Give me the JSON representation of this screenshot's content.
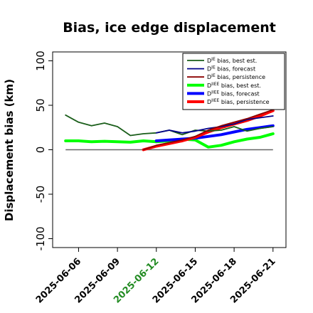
{
  "chart_data": {
    "type": "line",
    "title": "Bias, ice edge displacement",
    "ylabel": "Displacement bias (km)",
    "xlabel": "",
    "ylim": [
      -110,
      110
    ],
    "yticks": [
      -100,
      -50,
      0,
      50,
      100
    ],
    "xlim": [
      "2025-06-04",
      "2025-06-22"
    ],
    "xticks": [
      {
        "date": "2025-06-06",
        "label": "2025-06-06",
        "color": "#000000"
      },
      {
        "date": "2025-06-09",
        "label": "2025-06-09",
        "color": "#000000"
      },
      {
        "date": "2025-06-12",
        "label": "2025-06-12",
        "color": "#228b22"
      },
      {
        "date": "2025-06-15",
        "label": "2025-06-15",
        "color": "#000000"
      },
      {
        "date": "2025-06-18",
        "label": "2025-06-18",
        "color": "#000000"
      },
      {
        "date": "2025-06-21",
        "label": "2025-06-21",
        "color": "#000000"
      }
    ],
    "zero_line": {
      "y": 0,
      "color": "#666666"
    },
    "grid": false,
    "legend_position": "top-right",
    "series": [
      {
        "name": "D^IE bias, best est.",
        "sym": "D",
        "sup": "IE",
        "text": " bias, best est.",
        "color": "#1a5e1a",
        "width": 1.8,
        "x": [
          "2025-06-05",
          "2025-06-06",
          "2025-06-07",
          "2025-06-08",
          "2025-06-09",
          "2025-06-10",
          "2025-06-11",
          "2025-06-12",
          "2025-06-13",
          "2025-06-14",
          "2025-06-15",
          "2025-06-16",
          "2025-06-17",
          "2025-06-18",
          "2025-06-19",
          "2025-06-20",
          "2025-06-21"
        ],
        "y": [
          39,
          31,
          27,
          30,
          26,
          16,
          18,
          19,
          22,
          17,
          22,
          21,
          22,
          26,
          21,
          24,
          26
        ]
      },
      {
        "name": "D^IE bias, forecast",
        "sym": "D",
        "sup": "IE",
        "text": " bias, forecast",
        "color": "#00008b",
        "width": 1.8,
        "x": [
          "2025-06-12",
          "2025-06-13",
          "2025-06-14",
          "2025-06-15",
          "2025-06-16",
          "2025-06-17",
          "2025-06-18",
          "2025-06-19",
          "2025-06-20",
          "2025-06-21"
        ],
        "y": [
          19,
          22,
          19,
          21,
          24,
          26,
          29,
          34,
          36,
          38
        ]
      },
      {
        "name": "D^IE bias, persistence",
        "sym": "D",
        "sup": "IE",
        "text": " bias, persistence",
        "color": "#8b0000",
        "width": 1.8,
        "x": [
          "2025-06-11",
          "2025-06-12",
          "2025-06-13",
          "2025-06-14",
          "2025-06-15",
          "2025-06-16",
          "2025-06-17",
          "2025-06-18",
          "2025-06-19",
          "2025-06-20",
          "2025-06-21"
        ],
        "y": [
          0,
          5,
          8,
          11,
          15,
          22,
          27,
          31,
          35,
          40,
          45
        ]
      },
      {
        "name": "D^IIEE bias, best est.",
        "sym": "D",
        "sup": "IIEE",
        "text": " bias, best est.",
        "color": "#00ff00",
        "width": 4,
        "x": [
          "2025-06-05",
          "2025-06-06",
          "2025-06-07",
          "2025-06-08",
          "2025-06-09",
          "2025-06-10",
          "2025-06-11",
          "2025-06-12",
          "2025-06-13",
          "2025-06-14",
          "2025-06-15",
          "2025-06-16",
          "2025-06-17",
          "2025-06-18",
          "2025-06-19",
          "2025-06-20",
          "2025-06-21"
        ],
        "y": [
          10,
          10,
          9,
          9.5,
          9,
          8.5,
          10,
          9,
          10,
          12,
          11,
          3,
          5,
          9,
          12,
          14,
          18
        ]
      },
      {
        "name": "D^IIEE bias, forecast",
        "sym": "D",
        "sup": "IIEE",
        "text": " bias, forecast",
        "color": "#0000ff",
        "width": 4,
        "x": [
          "2025-06-12",
          "2025-06-13",
          "2025-06-14",
          "2025-06-15",
          "2025-06-16",
          "2025-06-17",
          "2025-06-18",
          "2025-06-19",
          "2025-06-20",
          "2025-06-21"
        ],
        "y": [
          10,
          11,
          12,
          13,
          15,
          17,
          20,
          23,
          25,
          27
        ]
      },
      {
        "name": "D^IIEE bias, persistence",
        "sym": "D",
        "sup": "IIEE",
        "text": " bias, persistence",
        "color": "#ff0000",
        "width": 4,
        "x": [
          "2025-06-11",
          "2025-06-12",
          "2025-06-13",
          "2025-06-14",
          "2025-06-15",
          "2025-06-16",
          "2025-06-17",
          "2025-06-18",
          "2025-06-19",
          "2025-06-20",
          "2025-06-21"
        ],
        "y": [
          0,
          4,
          7,
          10,
          14,
          20,
          25,
          29,
          33,
          38,
          44
        ]
      }
    ]
  }
}
